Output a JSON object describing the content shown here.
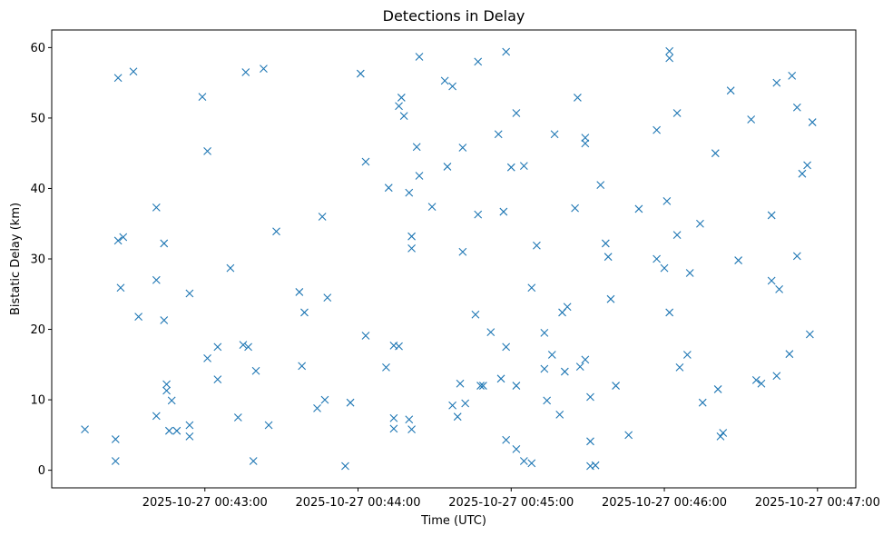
{
  "chart_data": {
    "type": "scatter",
    "title": "Detections in Delay",
    "xlabel": "Time (UTC)",
    "ylabel": "Bistatic Delay (km)",
    "x_tick_labels": [
      "2025-10-27 00:43:00",
      "2025-10-27 00:44:00",
      "2025-10-27 00:45:00",
      "2025-10-27 00:46:00",
      "2025-10-27 00:47:00"
    ],
    "y_tick_labels": [
      "0",
      "10",
      "20",
      "30",
      "40",
      "50",
      "60"
    ],
    "x_range": [
      "2025-10-27 00:42:00",
      "2025-10-27 00:47:15"
    ],
    "ylim": [
      -2.5,
      62.5
    ],
    "marker": "x",
    "color": "#1f77b4",
    "grid": false,
    "points": [
      {
        "t": "2025-10-27 00:42:13",
        "y": 5.8
      },
      {
        "t": "2025-10-27 00:42:25",
        "y": 4.4
      },
      {
        "t": "2025-10-27 00:42:25",
        "y": 1.3
      },
      {
        "t": "2025-10-27 00:42:26",
        "y": 55.7
      },
      {
        "t": "2025-10-27 00:42:32",
        "y": 56.6
      },
      {
        "t": "2025-10-27 00:42:26",
        "y": 32.6
      },
      {
        "t": "2025-10-27 00:42:28",
        "y": 33.1
      },
      {
        "t": "2025-10-27 00:42:27",
        "y": 25.9
      },
      {
        "t": "2025-10-27 00:42:34",
        "y": 21.8
      },
      {
        "t": "2025-10-27 00:42:41",
        "y": 37.3
      },
      {
        "t": "2025-10-27 00:42:41",
        "y": 27.0
      },
      {
        "t": "2025-10-27 00:42:41",
        "y": 7.7
      },
      {
        "t": "2025-10-27 00:42:44",
        "y": 32.2
      },
      {
        "t": "2025-10-27 00:42:44",
        "y": 21.3
      },
      {
        "t": "2025-10-27 00:42:45",
        "y": 12.2
      },
      {
        "t": "2025-10-27 00:42:45",
        "y": 11.3
      },
      {
        "t": "2025-10-27 00:42:47",
        "y": 9.9
      },
      {
        "t": "2025-10-27 00:42:46",
        "y": 5.6
      },
      {
        "t": "2025-10-27 00:42:49",
        "y": 5.6
      },
      {
        "t": "2025-10-27 00:42:54",
        "y": 6.4
      },
      {
        "t": "2025-10-27 00:42:54",
        "y": 4.8
      },
      {
        "t": "2025-10-27 00:42:54",
        "y": 25.1
      },
      {
        "t": "2025-10-27 00:42:59",
        "y": 53.0
      },
      {
        "t": "2025-10-27 00:43:01",
        "y": 45.3
      },
      {
        "t": "2025-10-27 00:43:01",
        "y": 15.9
      },
      {
        "t": "2025-10-27 00:43:05",
        "y": 17.5
      },
      {
        "t": "2025-10-27 00:43:05",
        "y": 12.9
      },
      {
        "t": "2025-10-27 00:43:10",
        "y": 28.7
      },
      {
        "t": "2025-10-27 00:43:13",
        "y": 7.5
      },
      {
        "t": "2025-10-27 00:43:15",
        "y": 17.8
      },
      {
        "t": "2025-10-27 00:43:16",
        "y": 56.5
      },
      {
        "t": "2025-10-27 00:43:17",
        "y": 17.5
      },
      {
        "t": "2025-10-27 00:43:19",
        "y": 1.3
      },
      {
        "t": "2025-10-27 00:43:20",
        "y": 14.1
      },
      {
        "t": "2025-10-27 00:43:23",
        "y": 57.0
      },
      {
        "t": "2025-10-27 00:43:25",
        "y": 6.4
      },
      {
        "t": "2025-10-27 00:43:28",
        "y": 33.9
      },
      {
        "t": "2025-10-27 00:43:37",
        "y": 25.3
      },
      {
        "t": "2025-10-27 00:43:38",
        "y": 14.8
      },
      {
        "t": "2025-10-27 00:43:39",
        "y": 22.4
      },
      {
        "t": "2025-10-27 00:43:44",
        "y": 8.8
      },
      {
        "t": "2025-10-27 00:43:47",
        "y": 10.0
      },
      {
        "t": "2025-10-27 00:43:46",
        "y": 36.0
      },
      {
        "t": "2025-10-27 00:43:48",
        "y": 24.5
      },
      {
        "t": "2025-10-27 00:43:55",
        "y": 0.6
      },
      {
        "t": "2025-10-27 00:43:57",
        "y": 9.6
      },
      {
        "t": "2025-10-27 00:44:01",
        "y": 56.3
      },
      {
        "t": "2025-10-27 00:44:03",
        "y": 19.1
      },
      {
        "t": "2025-10-27 00:44:03",
        "y": 43.8
      },
      {
        "t": "2025-10-27 00:44:11",
        "y": 14.6
      },
      {
        "t": "2025-10-27 00:44:12",
        "y": 40.1
      },
      {
        "t": "2025-10-27 00:44:14",
        "y": 7.4
      },
      {
        "t": "2025-10-27 00:44:14",
        "y": 5.9
      },
      {
        "t": "2025-10-27 00:44:14",
        "y": 17.7
      },
      {
        "t": "2025-10-27 00:44:16",
        "y": 17.6
      },
      {
        "t": "2025-10-27 00:44:16",
        "y": 51.7
      },
      {
        "t": "2025-10-27 00:44:17",
        "y": 52.9
      },
      {
        "t": "2025-10-27 00:44:18",
        "y": 50.3
      },
      {
        "t": "2025-10-27 00:44:20",
        "y": 39.4
      },
      {
        "t": "2025-10-27 00:44:21",
        "y": 33.2
      },
      {
        "t": "2025-10-27 00:44:21",
        "y": 31.5
      },
      {
        "t": "2025-10-27 00:44:20",
        "y": 7.2
      },
      {
        "t": "2025-10-27 00:44:21",
        "y": 5.8
      },
      {
        "t": "2025-10-27 00:44:23",
        "y": 45.9
      },
      {
        "t": "2025-10-27 00:44:24",
        "y": 41.8
      },
      {
        "t": "2025-10-27 00:44:24",
        "y": 58.7
      },
      {
        "t": "2025-10-27 00:44:29",
        "y": 37.4
      },
      {
        "t": "2025-10-27 00:44:34",
        "y": 55.3
      },
      {
        "t": "2025-10-27 00:44:35",
        "y": 43.1
      },
      {
        "t": "2025-10-27 00:44:37",
        "y": 54.5
      },
      {
        "t": "2025-10-27 00:44:37",
        "y": 9.2
      },
      {
        "t": "2025-10-27 00:44:39",
        "y": 7.6
      },
      {
        "t": "2025-10-27 00:44:40",
        "y": 12.3
      },
      {
        "t": "2025-10-27 00:44:41",
        "y": 31.0
      },
      {
        "t": "2025-10-27 00:44:41",
        "y": 45.8
      },
      {
        "t": "2025-10-27 00:44:42",
        "y": 9.5
      },
      {
        "t": "2025-10-27 00:44:46",
        "y": 22.1
      },
      {
        "t": "2025-10-27 00:44:47",
        "y": 36.3
      },
      {
        "t": "2025-10-27 00:44:47",
        "y": 58.0
      },
      {
        "t": "2025-10-27 00:44:48",
        "y": 12.0
      },
      {
        "t": "2025-10-27 00:44:49",
        "y": 12.0
      },
      {
        "t": "2025-10-27 00:44:52",
        "y": 19.6
      },
      {
        "t": "2025-10-27 00:44:55",
        "y": 47.7
      },
      {
        "t": "2025-10-27 00:44:56",
        "y": 13.0
      },
      {
        "t": "2025-10-27 00:44:57",
        "y": 36.7
      },
      {
        "t": "2025-10-27 00:44:58",
        "y": 59.4
      },
      {
        "t": "2025-10-27 00:44:58",
        "y": 17.5
      },
      {
        "t": "2025-10-27 00:44:58",
        "y": 4.3
      },
      {
        "t": "2025-10-27 00:45:00",
        "y": 43.0
      },
      {
        "t": "2025-10-27 00:45:02",
        "y": 50.7
      },
      {
        "t": "2025-10-27 00:45:02",
        "y": 12.0
      },
      {
        "t": "2025-10-27 00:45:02",
        "y": 3.0
      },
      {
        "t": "2025-10-27 00:45:05",
        "y": 43.2
      },
      {
        "t": "2025-10-27 00:45:05",
        "y": 1.3
      },
      {
        "t": "2025-10-27 00:45:08",
        "y": 25.9
      },
      {
        "t": "2025-10-27 00:45:08",
        "y": 1.0
      },
      {
        "t": "2025-10-27 00:45:10",
        "y": 31.9
      },
      {
        "t": "2025-10-27 00:45:13",
        "y": 19.5
      },
      {
        "t": "2025-10-27 00:45:13",
        "y": 14.4
      },
      {
        "t": "2025-10-27 00:45:14",
        "y": 9.9
      },
      {
        "t": "2025-10-27 00:45:16",
        "y": 16.4
      },
      {
        "t": "2025-10-27 00:45:17",
        "y": 47.7
      },
      {
        "t": "2025-10-27 00:45:20",
        "y": 22.4
      },
      {
        "t": "2025-10-27 00:45:19",
        "y": 7.9
      },
      {
        "t": "2025-10-27 00:45:21",
        "y": 14.0
      },
      {
        "t": "2025-10-27 00:45:22",
        "y": 23.2
      },
      {
        "t": "2025-10-27 00:45:25",
        "y": 37.2
      },
      {
        "t": "2025-10-27 00:45:26",
        "y": 52.9
      },
      {
        "t": "2025-10-27 00:45:27",
        "y": 14.7
      },
      {
        "t": "2025-10-27 00:45:29",
        "y": 15.7
      },
      {
        "t": "2025-10-27 00:45:29",
        "y": 47.2
      },
      {
        "t": "2025-10-27 00:45:29",
        "y": 46.4
      },
      {
        "t": "2025-10-27 00:45:31",
        "y": 10.4
      },
      {
        "t": "2025-10-27 00:45:31",
        "y": 4.1
      },
      {
        "t": "2025-10-27 00:45:31",
        "y": 0.6
      },
      {
        "t": "2025-10-27 00:45:33",
        "y": 0.7
      },
      {
        "t": "2025-10-27 00:45:35",
        "y": 40.5
      },
      {
        "t": "2025-10-27 00:45:37",
        "y": 32.2
      },
      {
        "t": "2025-10-27 00:45:38",
        "y": 30.3
      },
      {
        "t": "2025-10-27 00:45:39",
        "y": 24.3
      },
      {
        "t": "2025-10-27 00:45:41",
        "y": 12.0
      },
      {
        "t": "2025-10-27 00:45:46",
        "y": 5.0
      },
      {
        "t": "2025-10-27 00:45:50",
        "y": 37.1
      },
      {
        "t": "2025-10-27 00:45:57",
        "y": 48.3
      },
      {
        "t": "2025-10-27 00:45:57",
        "y": 30.0
      },
      {
        "t": "2025-10-27 00:46:00",
        "y": 28.7
      },
      {
        "t": "2025-10-27 00:46:01",
        "y": 38.2
      },
      {
        "t": "2025-10-27 00:46:02",
        "y": 59.5
      },
      {
        "t": "2025-10-27 00:46:02",
        "y": 58.5
      },
      {
        "t": "2025-10-27 00:46:02",
        "y": 22.4
      },
      {
        "t": "2025-10-27 00:46:05",
        "y": 33.4
      },
      {
        "t": "2025-10-27 00:46:05",
        "y": 50.7
      },
      {
        "t": "2025-10-27 00:46:06",
        "y": 14.6
      },
      {
        "t": "2025-10-27 00:46:09",
        "y": 16.4
      },
      {
        "t": "2025-10-27 00:46:10",
        "y": 28.0
      },
      {
        "t": "2025-10-27 00:46:14",
        "y": 35.0
      },
      {
        "t": "2025-10-27 00:46:15",
        "y": 9.6
      },
      {
        "t": "2025-10-27 00:46:20",
        "y": 45.0
      },
      {
        "t": "2025-10-27 00:46:21",
        "y": 11.5
      },
      {
        "t": "2025-10-27 00:46:22",
        "y": 4.8
      },
      {
        "t": "2025-10-27 00:46:23",
        "y": 5.3
      },
      {
        "t": "2025-10-27 00:46:26",
        "y": 53.9
      },
      {
        "t": "2025-10-27 00:46:29",
        "y": 29.8
      },
      {
        "t": "2025-10-27 00:46:34",
        "y": 49.8
      },
      {
        "t": "2025-10-27 00:46:36",
        "y": 12.8
      },
      {
        "t": "2025-10-27 00:46:38",
        "y": 12.3
      },
      {
        "t": "2025-10-27 00:46:42",
        "y": 36.2
      },
      {
        "t": "2025-10-27 00:46:42",
        "y": 26.9
      },
      {
        "t": "2025-10-27 00:46:44",
        "y": 55.0
      },
      {
        "t": "2025-10-27 00:46:44",
        "y": 13.4
      },
      {
        "t": "2025-10-27 00:46:45",
        "y": 25.7
      },
      {
        "t": "2025-10-27 00:46:49",
        "y": 16.5
      },
      {
        "t": "2025-10-27 00:46:50",
        "y": 56.0
      },
      {
        "t": "2025-10-27 00:46:52",
        "y": 51.5
      },
      {
        "t": "2025-10-27 00:46:52",
        "y": 30.4
      },
      {
        "t": "2025-10-27 00:46:54",
        "y": 42.1
      },
      {
        "t": "2025-10-27 00:46:56",
        "y": 43.3
      },
      {
        "t": "2025-10-27 00:46:58",
        "y": 49.4
      },
      {
        "t": "2025-10-27 00:46:57",
        "y": 19.3
      }
    ]
  }
}
